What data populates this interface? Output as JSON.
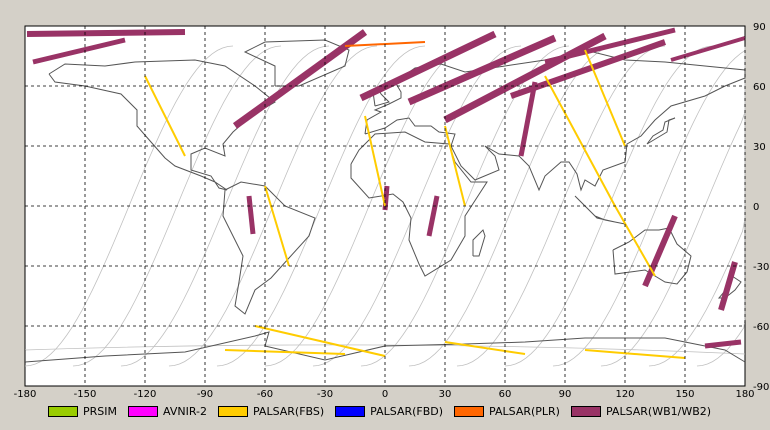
{
  "map": {
    "lon_range": [
      -180,
      180
    ],
    "lat_range": [
      -90,
      90
    ],
    "lon_ticks": [
      "-180",
      "-150",
      "-120",
      "-90",
      "-60",
      "-30",
      "0",
      "30",
      "60",
      "90",
      "120",
      "150",
      "180"
    ],
    "lat_ticks": [
      "90",
      "60",
      "30",
      "0",
      "-30",
      "-60",
      "-90"
    ],
    "grid": "dashed",
    "colors": {
      "background": "#ffffff",
      "frame": "#d4d0c8",
      "coastline": "#555555",
      "orbit_track": "#c0c0c0"
    },
    "swaths": [
      {
        "sensor": "PALSAR(WB1/WB2)",
        "lon": -179,
        "lat": 86,
        "lon2": -100,
        "lat2": 87,
        "w": 6
      },
      {
        "sensor": "PALSAR(WB1/WB2)",
        "lon": -176,
        "lat": 72,
        "lon2": -130,
        "lat2": 83,
        "w": 5
      },
      {
        "sensor": "PALSAR(WB1/WB2)",
        "lon": -75,
        "lat": 40,
        "lon2": -10,
        "lat2": 87,
        "w": 7
      },
      {
        "sensor": "PALSAR(WB1/WB2)",
        "lon": -12,
        "lat": 54,
        "lon2": 55,
        "lat2": 86,
        "w": 7
      },
      {
        "sensor": "PALSAR(WB1/WB2)",
        "lon": 12,
        "lat": 52,
        "lon2": 85,
        "lat2": 84,
        "w": 7
      },
      {
        "sensor": "PALSAR(WB1/WB2)",
        "lon": 30,
        "lat": 43,
        "lon2": 110,
        "lat2": 85,
        "w": 7
      },
      {
        "sensor": "PALSAR(WB1/WB2)",
        "lon": 63,
        "lat": 55,
        "lon2": 140,
        "lat2": 82,
        "w": 6
      },
      {
        "sensor": "PALSAR(WB1/WB2)",
        "lon": 80,
        "lat": 72,
        "lon2": 145,
        "lat2": 88,
        "w": 5
      },
      {
        "sensor": "PALSAR(WB1/WB2)",
        "lon": 143,
        "lat": 73,
        "lon2": 180,
        "lat2": 84,
        "w": 4
      },
      {
        "sensor": "PALSAR(WB1/WB2)",
        "lon": -68,
        "lat": 5,
        "lon2": -66,
        "lat2": -14,
        "w": 5
      },
      {
        "sensor": "PALSAR(WB1/WB2)",
        "lon": 1,
        "lat": 10,
        "lon2": 0,
        "lat2": -2,
        "w": 5
      },
      {
        "sensor": "PALSAR(WB1/WB2)",
        "lon": 26,
        "lat": 5,
        "lon2": 22,
        "lat2": -15,
        "w": 5
      },
      {
        "sensor": "PALSAR(WB1/WB2)",
        "lon": 75,
        "lat": 62,
        "lon2": 68,
        "lat2": 25,
        "w": 5
      },
      {
        "sensor": "PALSAR(WB1/WB2)",
        "lon": 145,
        "lat": -5,
        "lon2": 130,
        "lat2": -40,
        "w": 6
      },
      {
        "sensor": "PALSAR(WB1/WB2)",
        "lon": 175,
        "lat": -28,
        "lon2": 168,
        "lat2": -52,
        "w": 6
      },
      {
        "sensor": "PALSAR(WB1/WB2)",
        "lon": 160,
        "lat": -70,
        "lon2": 178,
        "lat2": -68,
        "w": 5
      },
      {
        "sensor": "PALSAR(FBS)",
        "lon": -120,
        "lat": 65,
        "lon2": -100,
        "lat2": 25,
        "w": 2
      },
      {
        "sensor": "PALSAR(FBS)",
        "lon": -60,
        "lat": 10,
        "lon2": -48,
        "lat2": -30,
        "w": 2
      },
      {
        "sensor": "PALSAR(FBS)",
        "lon": -10,
        "lat": 45,
        "lon2": 0,
        "lat2": 0,
        "w": 2
      },
      {
        "sensor": "PALSAR(FBS)",
        "lon": 30,
        "lat": 40,
        "lon2": 40,
        "lat2": 0,
        "w": 2
      },
      {
        "sensor": "PALSAR(FBS)",
        "lon": 80,
        "lat": 65,
        "lon2": 115,
        "lat2": 0,
        "w": 2
      },
      {
        "sensor": "PALSAR(FBS)",
        "lon": 115,
        "lat": 0,
        "lon2": 135,
        "lat2": -35,
        "w": 2
      },
      {
        "sensor": "PALSAR(FBS)",
        "lon": 100,
        "lat": 78,
        "lon2": 120,
        "lat2": 30,
        "w": 2
      },
      {
        "sensor": "PALSAR(FBS)",
        "lon": -65,
        "lat": -60,
        "lon2": 0,
        "lat2": -75,
        "w": 2
      },
      {
        "sensor": "PALSAR(FBS)",
        "lon": -80,
        "lat": -72,
        "lon2": -20,
        "lat2": -74,
        "w": 2
      },
      {
        "sensor": "PALSAR(FBS)",
        "lon": 30,
        "lat": -68,
        "lon2": 70,
        "lat2": -74,
        "w": 2
      },
      {
        "sensor": "PALSAR(FBS)",
        "lon": 100,
        "lat": -72,
        "lon2": 150,
        "lat2": -76,
        "w": 2
      },
      {
        "sensor": "PALSAR(PLR)",
        "lon": -20,
        "lat": 80,
        "lon2": 20,
        "lat2": 82,
        "w": 2
      }
    ]
  },
  "legend": [
    {
      "label": "PRSIM",
      "color": "#99cc00"
    },
    {
      "label": "AVNIR-2",
      "color": "#ff00ff"
    },
    {
      "label": "PALSAR(FBS)",
      "color": "#ffcc00"
    },
    {
      "label": "PALSAR(FBD)",
      "color": "#0000ff"
    },
    {
      "label": "PALSAR(PLR)",
      "color": "#ff6600"
    },
    {
      "label": "PALSAR(WB1/WB2)",
      "color": "#993366"
    }
  ]
}
